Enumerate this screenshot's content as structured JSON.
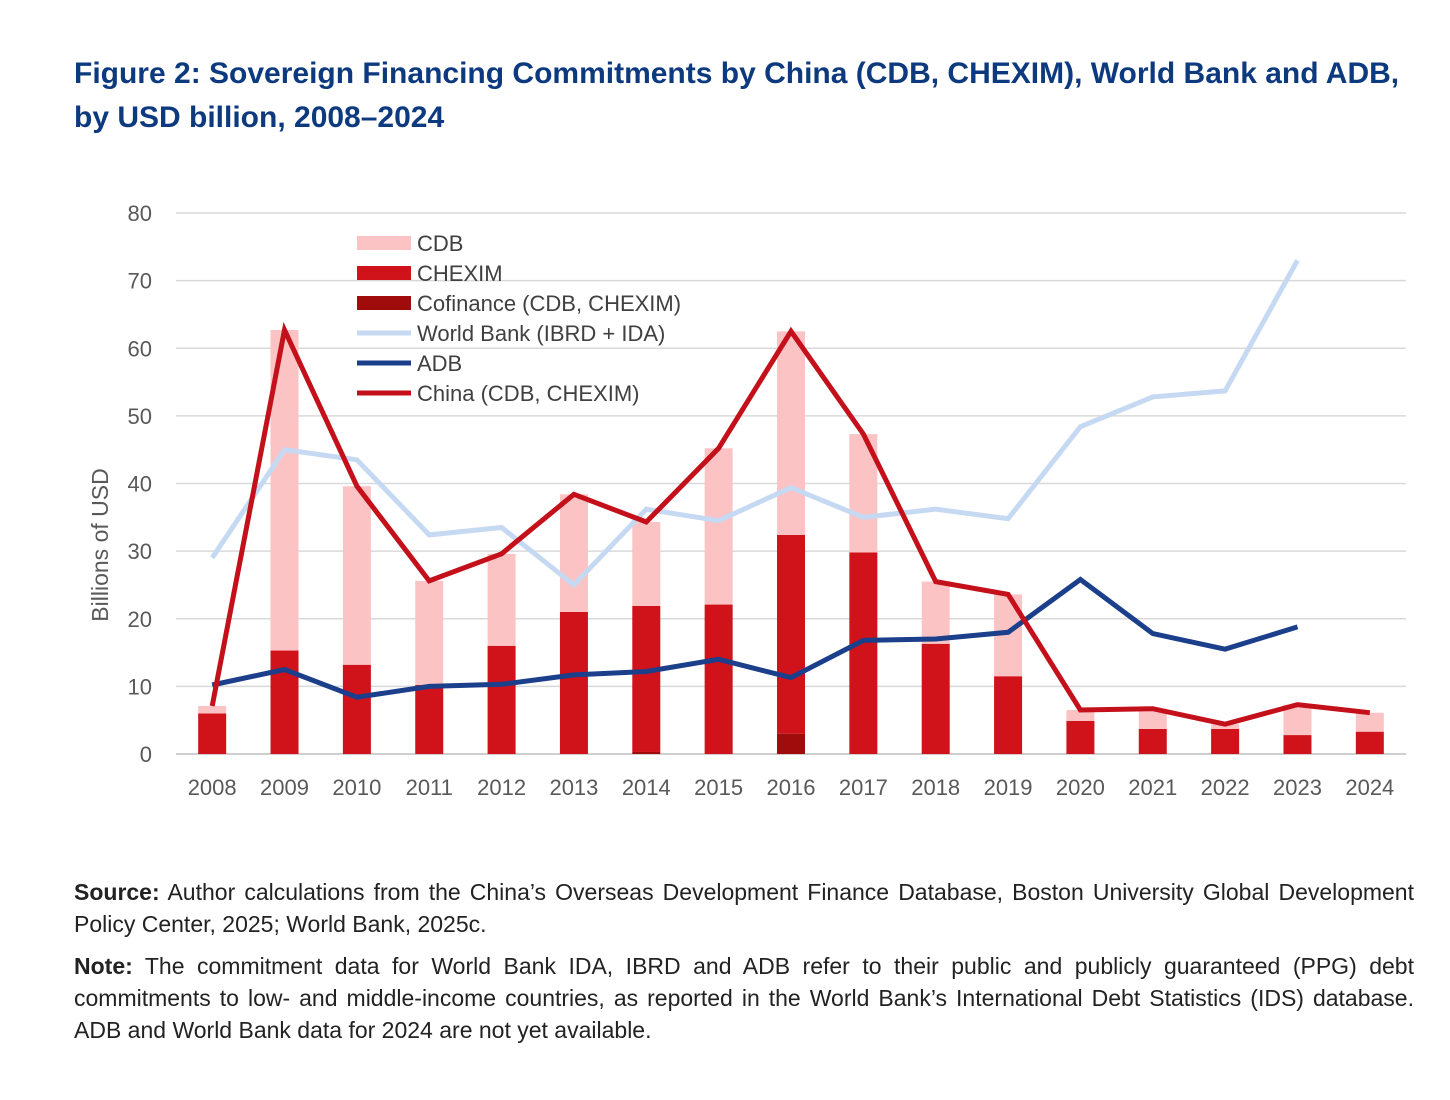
{
  "figure": {
    "title": "Figure 2: Sovereign Financing Commitments by China (CDB, CHEXIM), World Bank and ADB, by USD billion, 2008–2024"
  },
  "chart_data": {
    "type": "bar",
    "title": "Figure 2: Sovereign Financing Commitments by China (CDB, CHEXIM), World Bank and ADB, by USD billion, 2008–2024",
    "xlabel": "",
    "ylabel": "Billions of USD",
    "ylim": [
      0,
      80
    ],
    "yticks": [
      0,
      10,
      20,
      30,
      40,
      50,
      60,
      70,
      80
    ],
    "grid": true,
    "legend_position": "top-left",
    "categories": [
      "2008",
      "2009",
      "2010",
      "2011",
      "2012",
      "2013",
      "2014",
      "2015",
      "2016",
      "2017",
      "2018",
      "2019",
      "2020",
      "2021",
      "2022",
      "2023",
      "2024"
    ],
    "stacked_bars": [
      {
        "name": "Cofinance (CDB, CHEXIM)",
        "color": "#a00c0c",
        "values": [
          0,
          0,
          0,
          0,
          0,
          0,
          0.3,
          0,
          3,
          0,
          0,
          0,
          0,
          0,
          0,
          0,
          0
        ]
      },
      {
        "name": "CHEXIM",
        "color": "#d0121b",
        "values": [
          6,
          15.3,
          13.2,
          10.2,
          16,
          21,
          21.6,
          22.1,
          29.4,
          29.8,
          16.3,
          11.5,
          4.9,
          3.7,
          3.7,
          2.8,
          3.3
        ]
      },
      {
        "name": "CDB",
        "color": "#fcc3c4",
        "values": [
          1.1,
          47.4,
          26.4,
          15.4,
          13.6,
          17.4,
          12.4,
          23.1,
          30.1,
          17.5,
          9.2,
          12.1,
          1.6,
          3,
          0.7,
          4.5,
          2.8
        ]
      }
    ],
    "series": [
      {
        "name": "World Bank (IBRD + IDA)",
        "kind": "line",
        "color": "#c6d9f2",
        "values": [
          29,
          45,
          43.5,
          32.4,
          33.5,
          25,
          36.2,
          34.5,
          39.4,
          35,
          36.2,
          34.8,
          48.4,
          52.8,
          53.7,
          73,
          null
        ]
      },
      {
        "name": "ADB",
        "kind": "line",
        "color": "#1b3f8a",
        "values": [
          10.2,
          12.5,
          8.4,
          10,
          10.3,
          11.7,
          12.2,
          14,
          11.3,
          16.8,
          17,
          18,
          25.8,
          17.8,
          15.5,
          18.8,
          null
        ]
      },
      {
        "name": "China (CDB, CHEXIM)",
        "kind": "line",
        "color": "#c4101a",
        "values": [
          7.1,
          62.7,
          39.6,
          25.6,
          29.6,
          38.4,
          34.3,
          45.2,
          62.5,
          47.3,
          25.5,
          23.6,
          6.5,
          6.7,
          4.4,
          7.3,
          6.1
        ]
      }
    ],
    "legend": [
      "CDB",
      "CHEXIM",
      "Cofinance (CDB, CHEXIM)",
      "World Bank (IBRD + IDA)",
      "ADB",
      "China (CDB, CHEXIM)"
    ]
  },
  "notes": {
    "source_label": "Source:",
    "source_text": "Author calculations from the China’s Overseas Development Finance Database, Boston University Global Development Policy Center, 2025; World Bank, 2025c.",
    "note_label": "Note:",
    "note_text": "The commitment data for World Bank IDA, IBRD and ADB refer to their public and publicly guaranteed (PPG) debt commitments to low- and middle-income countries, as reported in the World Bank’s International Debt Statistics (IDS) database. ADB and World Bank data for 2024 are not yet available."
  }
}
